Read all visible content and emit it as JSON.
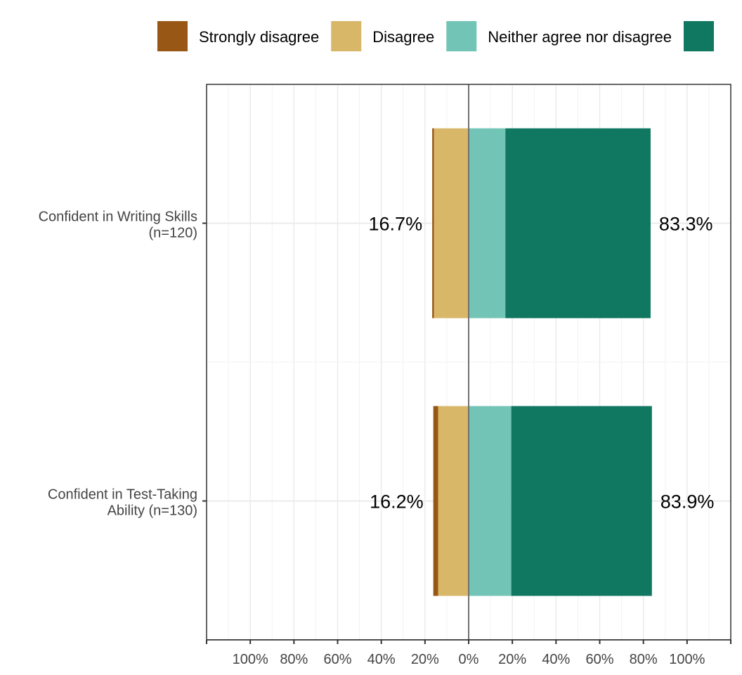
{
  "chart_data": {
    "type": "bar",
    "orientation": "horizontal",
    "stacking": "diverging",
    "categories": [
      {
        "label_lines": [
          "Confident in Writing Skills",
          "(n=120)"
        ]
      },
      {
        "label_lines": [
          "Confident in Test-Taking",
          "Ability (n=130)"
        ]
      }
    ],
    "series": [
      {
        "name": "Strongly disagree",
        "color": "#995715",
        "side": "negative",
        "values": [
          0.8,
          2.2
        ]
      },
      {
        "name": "Disagree",
        "color": "#d8b769",
        "side": "negative",
        "values": [
          15.9,
          14.0
        ]
      },
      {
        "name": "Neither agree nor disagree",
        "color": "#72c5b6",
        "side": "positive",
        "values": [
          16.8,
          19.5
        ]
      },
      {
        "name": "",
        "color": "#107760",
        "side": "positive",
        "values": [
          66.5,
          64.4
        ]
      }
    ],
    "totals_left": [
      "16.7%",
      "16.2%"
    ],
    "totals_right": [
      "83.3%",
      "83.9%"
    ],
    "x_ticks": [
      "100%",
      "80%",
      "60%",
      "40%",
      "20%",
      "0%",
      "20%",
      "40%",
      "60%",
      "80%",
      "100%"
    ],
    "x_tick_values": [
      -100,
      -80,
      -60,
      -40,
      -20,
      0,
      20,
      40,
      60,
      80,
      100
    ],
    "xlim": [
      -120,
      120
    ],
    "grid": true,
    "legend_position": "top",
    "xlabel": "",
    "ylabel": "",
    "title": ""
  }
}
